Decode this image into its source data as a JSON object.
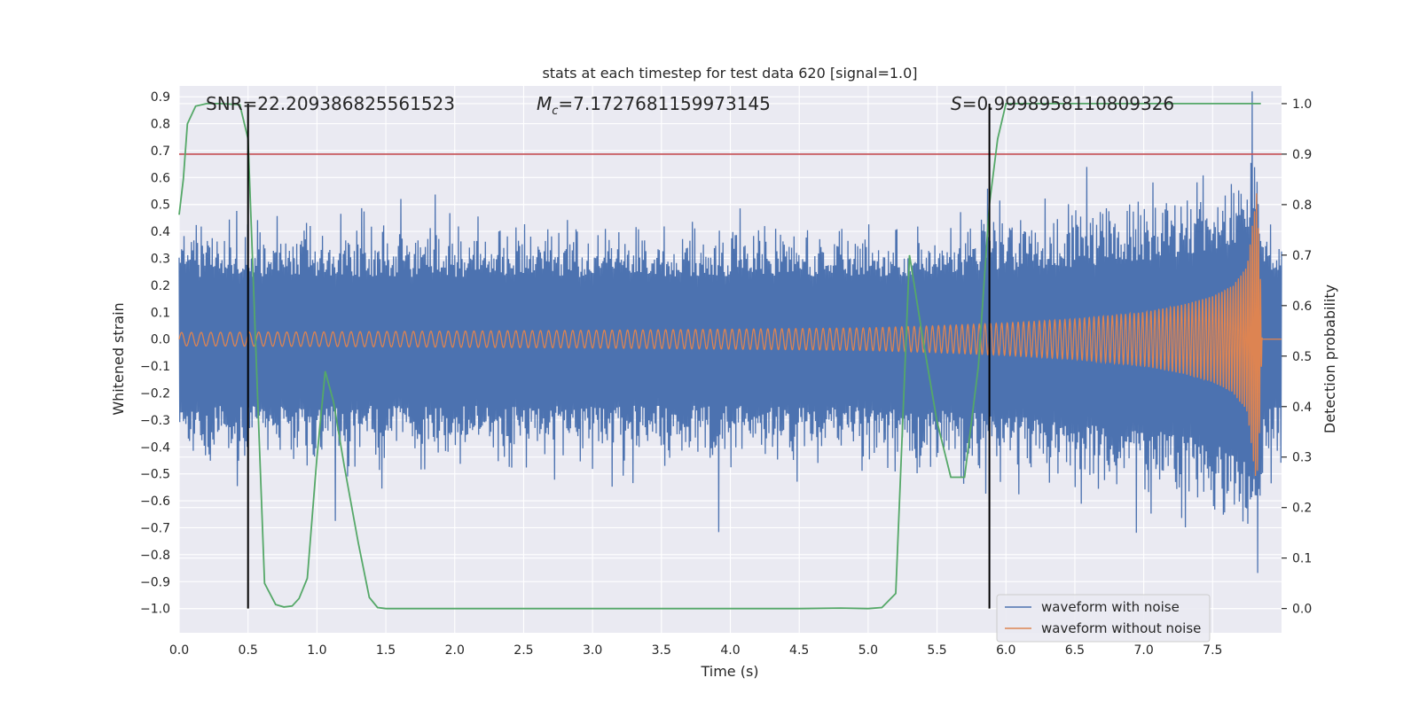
{
  "chart_data": {
    "type": "line",
    "title": "stats at each timestep for test data 620 [signal=1.0]",
    "xlabel": "Time (s)",
    "ylabel": "Whitened strain",
    "y2label": "Detection probability",
    "xlim": [
      0.0,
      8.0
    ],
    "ylim": [
      -1.09,
      0.94
    ],
    "y2lim": [
      -0.048,
      1.035
    ],
    "xticks": [
      "0.0",
      "0.5",
      "1.0",
      "1.5",
      "2.0",
      "2.5",
      "3.0",
      "3.5",
      "4.0",
      "4.5",
      "5.0",
      "5.5",
      "6.0",
      "6.5",
      "7.0",
      "7.5"
    ],
    "yticks": [
      "0.9",
      "0.8",
      "0.7",
      "0.6",
      "0.5",
      "0.4",
      "0.3",
      "0.2",
      "0.1",
      "0.0",
      "−0.1",
      "−0.2",
      "−0.3",
      "−0.4",
      "−0.5",
      "−0.6",
      "−0.7",
      "−0.8",
      "−0.9",
      "−1.0"
    ],
    "y2ticks": [
      "1.0",
      "0.9",
      "0.8",
      "0.7",
      "0.6",
      "0.5",
      "0.4",
      "0.3",
      "0.2",
      "0.1",
      "0.0"
    ],
    "grid": true,
    "legend_position": "lower right",
    "annotations": {
      "snr": "SNR=22.209386825561523",
      "mc_symbol": "M",
      "mc_sub": "c",
      "mc_value": "=7.1727681159973145",
      "s_symbol": "S",
      "s_value": "=0.9998958110809326"
    },
    "vlines": [
      0.5,
      5.88
    ],
    "threshold": 0.9,
    "series": [
      {
        "name": "waveform with noise",
        "axis": "left",
        "color": "#4c72b0",
        "envelope": {
          "x": [
            0.0,
            1.0,
            2.0,
            3.0,
            4.0,
            5.0,
            5.5,
            6.0,
            6.5,
            7.0,
            7.3,
            7.5,
            7.7,
            7.8,
            7.83,
            7.86,
            8.0
          ],
          "upper": [
            0.42,
            0.42,
            0.42,
            0.42,
            0.42,
            0.42,
            0.42,
            0.45,
            0.48,
            0.52,
            0.56,
            0.6,
            0.66,
            0.75,
            0.86,
            0.4,
            0.4
          ],
          "lower": [
            -0.45,
            -0.45,
            -0.45,
            -0.45,
            -0.45,
            -0.45,
            -0.48,
            -0.5,
            -0.55,
            -0.6,
            -0.65,
            -0.7,
            -0.78,
            -0.85,
            -1.0,
            -0.45,
            -0.45
          ]
        }
      },
      {
        "name": "waveform without noise",
        "axis": "left",
        "color": "#dd8452",
        "amplitude": {
          "x": [
            0.0,
            1.0,
            2.0,
            3.0,
            4.0,
            5.0,
            5.5,
            6.0,
            6.5,
            7.0,
            7.3,
            7.5,
            7.65,
            7.75,
            7.82,
            7.84,
            7.86,
            8.0
          ],
          "values": [
            0.025,
            0.027,
            0.03,
            0.033,
            0.037,
            0.042,
            0.05,
            0.06,
            0.075,
            0.1,
            0.13,
            0.16,
            0.2,
            0.27,
            0.55,
            0.35,
            0.0,
            0.0
          ]
        },
        "frequency": {
          "x": [
            0.0,
            2.0,
            4.0,
            5.0,
            6.0,
            6.5,
            7.0,
            7.5,
            7.7,
            7.84
          ],
          "values": [
            14,
            16,
            19,
            21,
            25,
            28,
            33,
            42,
            55,
            70
          ]
        }
      },
      {
        "name": "Detection probability",
        "axis": "right",
        "color": "#55a868",
        "x": [
          0.0,
          0.03,
          0.06,
          0.12,
          0.2,
          0.3,
          0.44,
          0.5,
          0.55,
          0.62,
          0.7,
          0.76,
          0.82,
          0.87,
          0.93,
          1.0,
          1.06,
          1.12,
          1.2,
          1.3,
          1.38,
          1.44,
          1.5,
          2.0,
          3.0,
          4.0,
          4.5,
          4.8,
          5.0,
          5.1,
          5.2,
          5.3,
          5.4,
          5.5,
          5.6,
          5.7,
          5.8,
          5.88,
          5.94,
          6.0,
          6.5,
          7.0,
          7.5,
          7.85
        ],
        "y": [
          0.78,
          0.85,
          0.96,
          0.995,
          1.0,
          1.0,
          0.998,
          0.93,
          0.56,
          0.05,
          0.008,
          0.003,
          0.005,
          0.02,
          0.06,
          0.3,
          0.47,
          0.41,
          0.28,
          0.13,
          0.022,
          0.002,
          0.0,
          0.0,
          0.0,
          0.0,
          0.0,
          0.001,
          0.0,
          0.002,
          0.03,
          0.7,
          0.53,
          0.37,
          0.26,
          0.26,
          0.48,
          0.8,
          0.93,
          1.0,
          1.0,
          1.0,
          1.0,
          1.0
        ]
      },
      {
        "name": "threshold",
        "axis": "right",
        "color": "#c44e52",
        "y": 0.9
      }
    ]
  }
}
